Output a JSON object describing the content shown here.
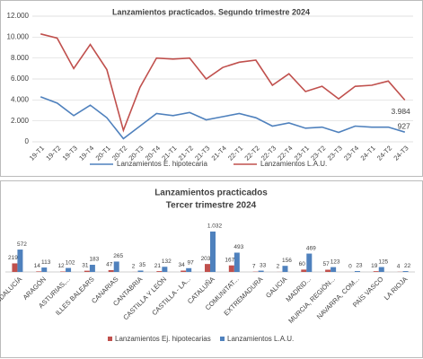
{
  "chart_data": [
    {
      "type": "line",
      "title": "Lanzamientos practicados.  Segundo trimestre 2024",
      "categories": [
        "19-T1",
        "19-T2",
        "19-T3",
        "19-T4",
        "20-T1",
        "20-T2",
        "20-T3",
        "20-T4",
        "21-T1",
        "21-T2",
        "21-T3",
        "21-T4",
        "22-T1",
        "22-T2",
        "22-T3",
        "22-T4",
        "23-T1",
        "23-T2",
        "23-T3",
        "23-T4",
        "24-T1",
        "24-T2",
        "24-T3"
      ],
      "series": [
        {
          "name": "Lanzamientos E. hipotecaria",
          "color": "#4f81bd",
          "values": [
            4300,
            3700,
            2500,
            3500,
            2300,
            300,
            1500,
            2700,
            2500,
            2800,
            2100,
            2400,
            2700,
            2300,
            1500,
            1800,
            1300,
            1400,
            900,
            1500,
            1400,
            1400,
            927
          ]
        },
        {
          "name": "Lanzamientos L.A.U.",
          "color": "#c0504d",
          "values": [
            10300,
            9900,
            7000,
            9300,
            6900,
            1100,
            5200,
            8000,
            7900,
            8000,
            6000,
            7100,
            7600,
            7800,
            5400,
            6500,
            4800,
            5300,
            4100,
            5300,
            5400,
            5800,
            3984
          ],
          "value_labels": [
            null,
            null,
            null,
            null,
            null,
            null,
            null,
            null,
            null,
            null,
            null,
            null,
            null,
            null,
            null,
            null,
            null,
            null,
            null,
            null,
            null,
            null,
            "3.984"
          ]
        }
      ],
      "label_last": true,
      "ylim": [
        0,
        12000
      ],
      "yticks": [
        0,
        {
          "value": 2000,
          "label": "2.000"
        },
        {
          "value": 4000,
          "label": "4.000"
        },
        {
          "value": 6000,
          "label": "6.000"
        },
        {
          "value": 8000,
          "label": "8.000"
        },
        {
          "value": 10000,
          "label": "10.000"
        },
        {
          "value": 12000,
          "label": "12.000"
        }
      ]
    },
    {
      "type": "bar",
      "title": "Lanzamientos practicados",
      "subtitle": "Tercer trimestre  2024",
      "categories": [
        "ANDALUCÍA",
        "ARAGÓN",
        "ASTURIAS,...",
        "ILLES BALEARS",
        "CANARIAS",
        "CANTABRIA",
        "CASTILLA Y LEÓN",
        "CASTILLA - LA...",
        "CATALUÑA",
        "COMUNITAT...",
        "EXTREMADURA",
        "GALICIA",
        "MADRID...",
        "MURCIA, REGIÓN...",
        "NAVARRA, COM...",
        "PAÍS VASCO",
        "LA RIOJA"
      ],
      "series": [
        {
          "name": "Lanzamientos Ej. hipotecarias",
          "color": "#c0504d",
          "values": [
            219,
            14,
            12,
            31,
            47,
            2,
            21,
            34,
            203,
            167,
            7,
            2,
            60,
            57,
            0,
            19,
            4
          ]
        },
        {
          "name": "Lanzamientos L.A.U.",
          "color": "#4f81bd",
          "values": [
            572,
            113,
            102,
            183,
            265,
            35,
            132,
            97,
            1032,
            493,
            33,
            156,
            469,
            123,
            23,
            125,
            22
          ],
          "value_labels": [
            "572",
            "113",
            "102",
            "183",
            "265",
            "35",
            "132",
            "97",
            "1.032",
            "493",
            "33",
            "156",
            "469",
            "123",
            "23",
            "125",
            "22"
          ]
        }
      ]
    }
  ]
}
